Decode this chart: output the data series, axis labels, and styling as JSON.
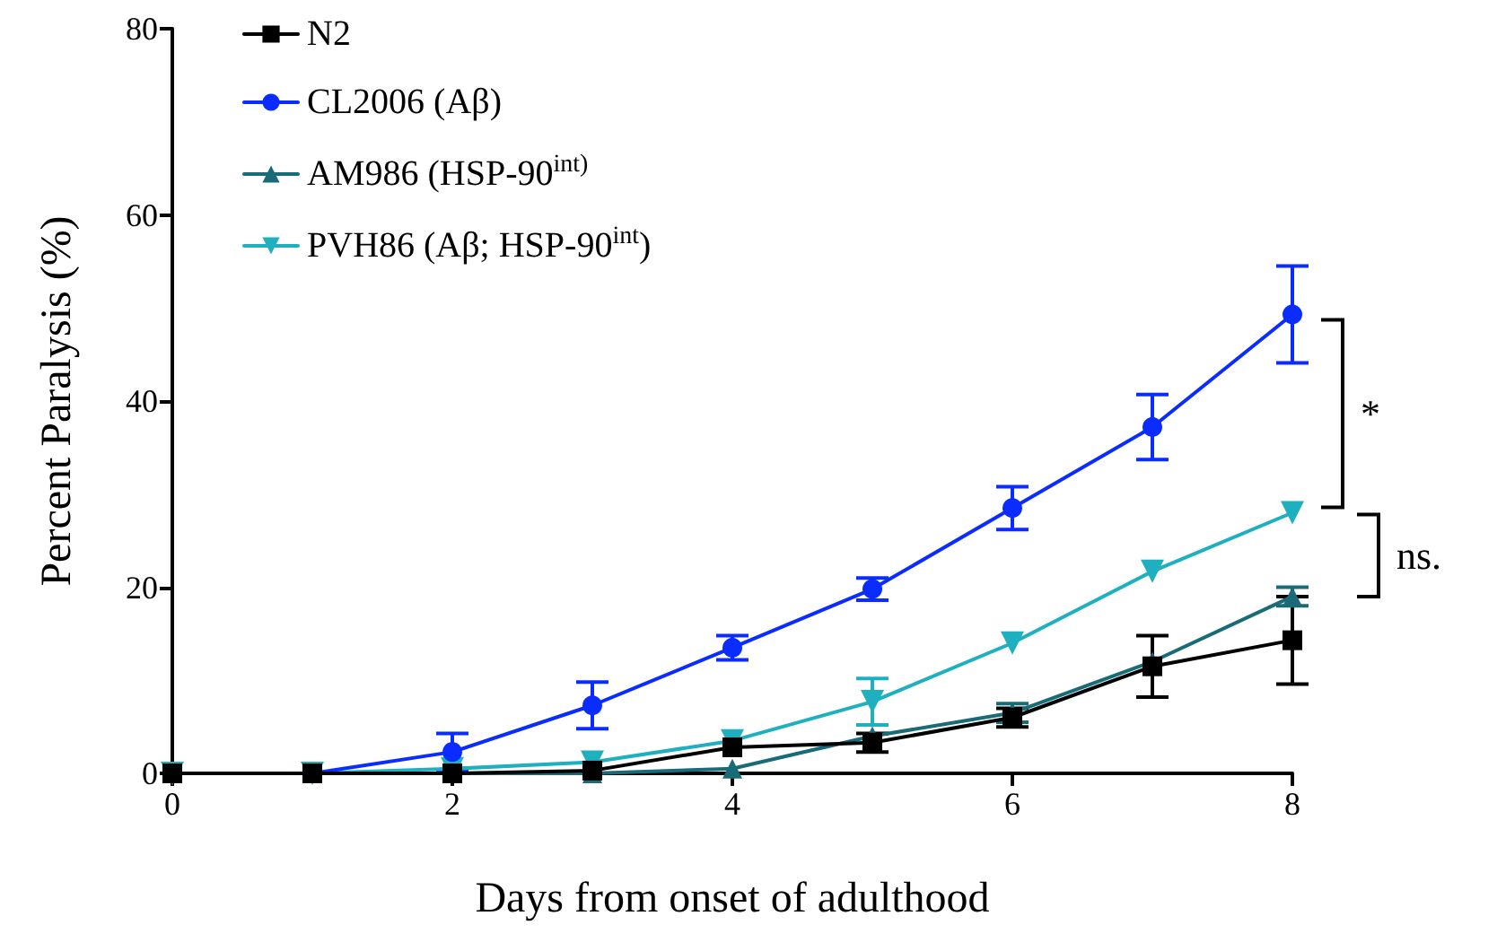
{
  "chart_data": {
    "type": "line",
    "xlabel": "Days from onset of adulthood",
    "ylabel": "Percent Paralysis (%)",
    "x": [
      0,
      1,
      2,
      3,
      4,
      5,
      6,
      7,
      8
    ],
    "series": [
      {
        "name": "N2",
        "color": "#000000",
        "marker": "square",
        "values": [
          0,
          0,
          0,
          0.3,
          2.8,
          3.3,
          6,
          11.5,
          14.3
        ],
        "errors": [
          null,
          null,
          null,
          null,
          null,
          1,
          1,
          3.3,
          4.7
        ]
      },
      {
        "name": "CL2006 (Aβ)",
        "color": "#0a2cff",
        "marker": "circle",
        "values": [
          0,
          0,
          2.3,
          7.3,
          13.5,
          19.8,
          28.5,
          37.2,
          49.3
        ],
        "errors": [
          null,
          null,
          2,
          2.5,
          1.3,
          1.2,
          2.3,
          3.5,
          5.2
        ]
      },
      {
        "name": "AM986 (HSP-90$^{int)}$",
        "color": "#1a6b78",
        "marker": "triangle",
        "values": [
          0,
          0,
          0,
          0,
          0.5,
          4,
          6.5,
          12,
          19
        ],
        "errors": [
          null,
          null,
          null,
          null,
          null,
          null,
          1,
          null,
          1
        ]
      },
      {
        "name": "PVH86 (Aβ; HSP-90$^{int}$)",
        "color": "#1fb0c0",
        "marker": "triangle-down",
        "values": [
          0,
          0,
          0.5,
          1.2,
          3.5,
          7.7,
          14,
          21.7,
          28
        ],
        "errors": [
          null,
          null,
          null,
          null,
          null,
          2.5,
          null,
          null,
          null
        ]
      }
    ],
    "xlim": [
      0,
      8
    ],
    "xticks": [
      0,
      2,
      4,
      6,
      8
    ],
    "ylim": [
      0,
      80
    ],
    "yticks": [
      0,
      20,
      40,
      60,
      80
    ],
    "grid": false,
    "legend": "top left",
    "annotations": [
      "*",
      "ns."
    ]
  }
}
